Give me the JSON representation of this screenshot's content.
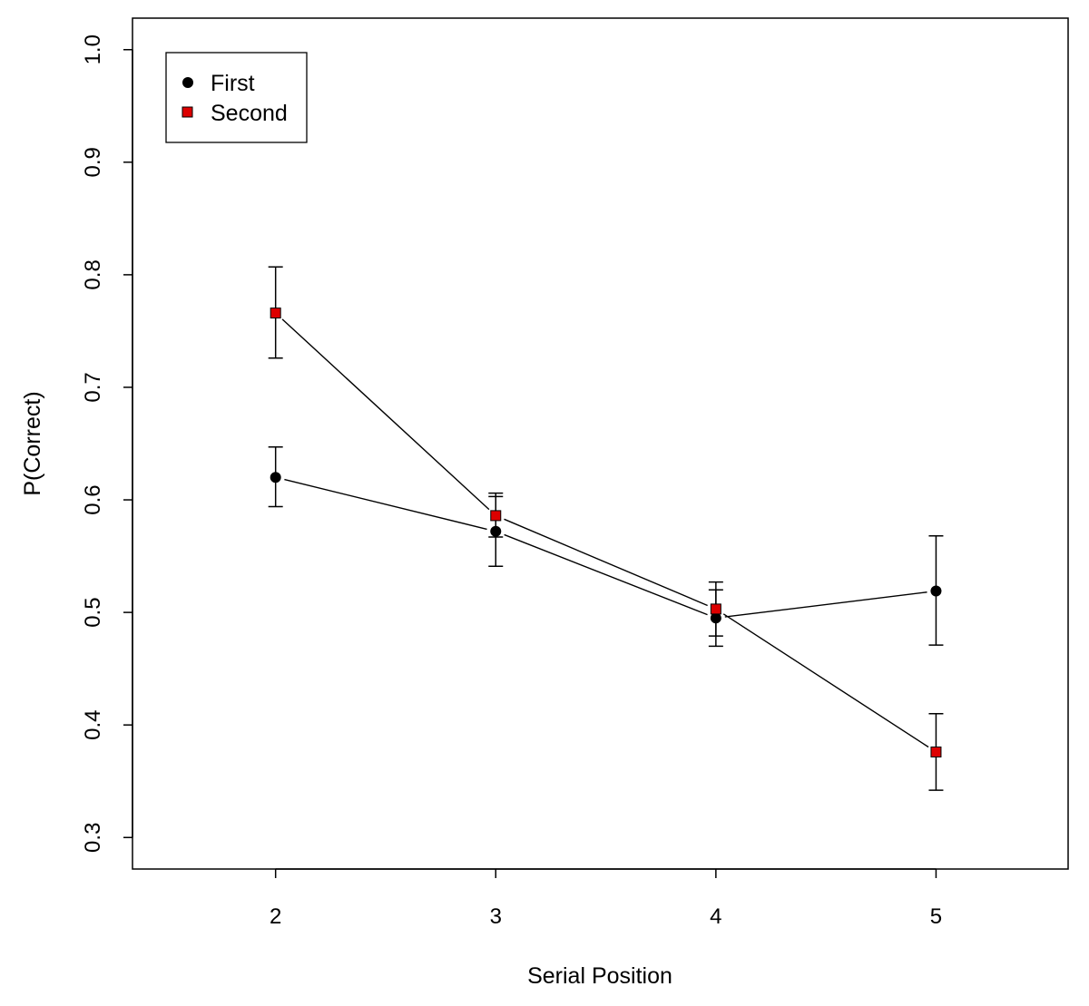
{
  "chart_data": {
    "type": "line",
    "title": "",
    "xlabel": "Serial Position",
    "ylabel": "P(Correct)",
    "x": [
      2,
      3,
      4,
      5
    ],
    "xlim": [
      1.35,
      5.6
    ],
    "ylim": [
      0.272,
      1.028
    ],
    "xticks": [
      2,
      3,
      4,
      5
    ],
    "xtick_labels": [
      "2",
      "3",
      "4",
      "5"
    ],
    "yticks": [
      0.3,
      0.4,
      0.5,
      0.6,
      0.7,
      0.8,
      0.9,
      1.0
    ],
    "ytick_labels": [
      "0.3",
      "0.4",
      "0.5",
      "0.6",
      "0.7",
      "0.8",
      "0.9",
      "1.0"
    ],
    "grid": false,
    "legend_position": "top-left",
    "series": [
      {
        "name": "First",
        "marker": "circle",
        "color": "#000000",
        "values": [
          0.62,
          0.572,
          0.495,
          0.519
        ],
        "err_low": [
          0.594,
          0.541,
          0.47,
          0.471
        ],
        "err_high": [
          0.647,
          0.603,
          0.52,
          0.568
        ]
      },
      {
        "name": "Second",
        "marker": "square",
        "color": "#dd0000",
        "values": [
          0.766,
          0.586,
          0.503,
          0.376
        ],
        "err_low": [
          0.726,
          0.567,
          0.479,
          0.342
        ],
        "err_high": [
          0.807,
          0.606,
          0.527,
          0.41
        ]
      }
    ]
  }
}
